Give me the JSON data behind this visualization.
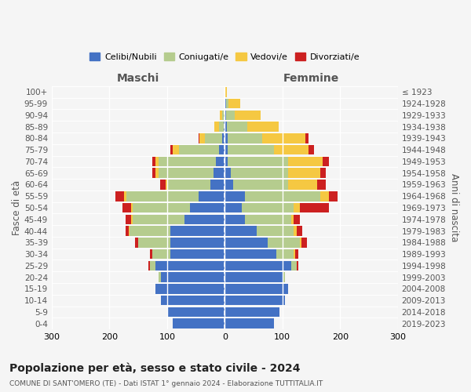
{
  "age_groups": [
    "0-4",
    "5-9",
    "10-14",
    "15-19",
    "20-24",
    "25-29",
    "30-34",
    "35-39",
    "40-44",
    "45-49",
    "50-54",
    "55-59",
    "60-64",
    "65-69",
    "70-74",
    "75-79",
    "80-84",
    "85-89",
    "90-94",
    "95-99",
    "100+"
  ],
  "birth_years": [
    "2019-2023",
    "2014-2018",
    "2009-2013",
    "2004-2008",
    "1999-2003",
    "1994-1998",
    "1989-1993",
    "1984-1988",
    "1979-1983",
    "1974-1978",
    "1969-1973",
    "1964-1968",
    "1959-1963",
    "1954-1958",
    "1949-1953",
    "1944-1948",
    "1939-1943",
    "1934-1938",
    "1929-1933",
    "1924-1928",
    "≤ 1923"
  ],
  "colors": {
    "celibi": "#4472c4",
    "coniugati": "#b5cc8e",
    "vedovi": "#f5c842",
    "divorziati": "#cc2020"
  },
  "males": {
    "celibi": [
      90,
      100,
      110,
      120,
      110,
      120,
      95,
      95,
      95,
      70,
      60,
      45,
      25,
      20,
      15,
      10,
      4,
      2,
      1,
      1,
      1
    ],
    "coniugati": [
      0,
      0,
      0,
      0,
      5,
      10,
      30,
      55,
      70,
      90,
      100,
      125,
      75,
      95,
      100,
      70,
      30,
      8,
      3,
      0,
      0
    ],
    "vedovi": [
      0,
      0,
      0,
      0,
      0,
      0,
      0,
      0,
      2,
      2,
      2,
      5,
      2,
      5,
      5,
      10,
      10,
      8,
      5,
      0,
      0
    ],
    "divorziati": [
      0,
      0,
      0,
      0,
      0,
      2,
      5,
      5,
      5,
      10,
      15,
      15,
      10,
      5,
      5,
      5,
      2,
      0,
      0,
      0,
      0
    ]
  },
  "females": {
    "nubili": [
      85,
      95,
      105,
      110,
      100,
      115,
      90,
      75,
      55,
      35,
      30,
      35,
      15,
      10,
      5,
      5,
      5,
      4,
      2,
      2,
      1
    ],
    "coniugate": [
      0,
      0,
      0,
      0,
      5,
      10,
      30,
      55,
      65,
      80,
      90,
      130,
      95,
      100,
      105,
      80,
      60,
      35,
      15,
      5,
      0
    ],
    "vedove": [
      0,
      0,
      0,
      0,
      0,
      0,
      2,
      3,
      5,
      5,
      10,
      15,
      50,
      55,
      60,
      60,
      75,
      55,
      45,
      20,
      2
    ],
    "divorziate": [
      0,
      0,
      0,
      0,
      0,
      2,
      5,
      10,
      10,
      10,
      50,
      15,
      15,
      10,
      10,
      10,
      5,
      0,
      0,
      0,
      0
    ]
  },
  "xlim": 300,
  "title": "Popolazione per età, sesso e stato civile - 2024",
  "subtitle": "COMUNE DI SANT'OMERO (TE) - Dati ISTAT 1° gennaio 2024 - Elaborazione TUTTITALIA.IT",
  "ylabel_left": "Fasce di età",
  "ylabel_right": "Anni di nascita",
  "legend_labels": [
    "Celibi/Nubili",
    "Coniugati/e",
    "Vedovi/e",
    "Divorziati/e"
  ],
  "bg_color": "#f5f5f5",
  "bar_height": 0.85
}
